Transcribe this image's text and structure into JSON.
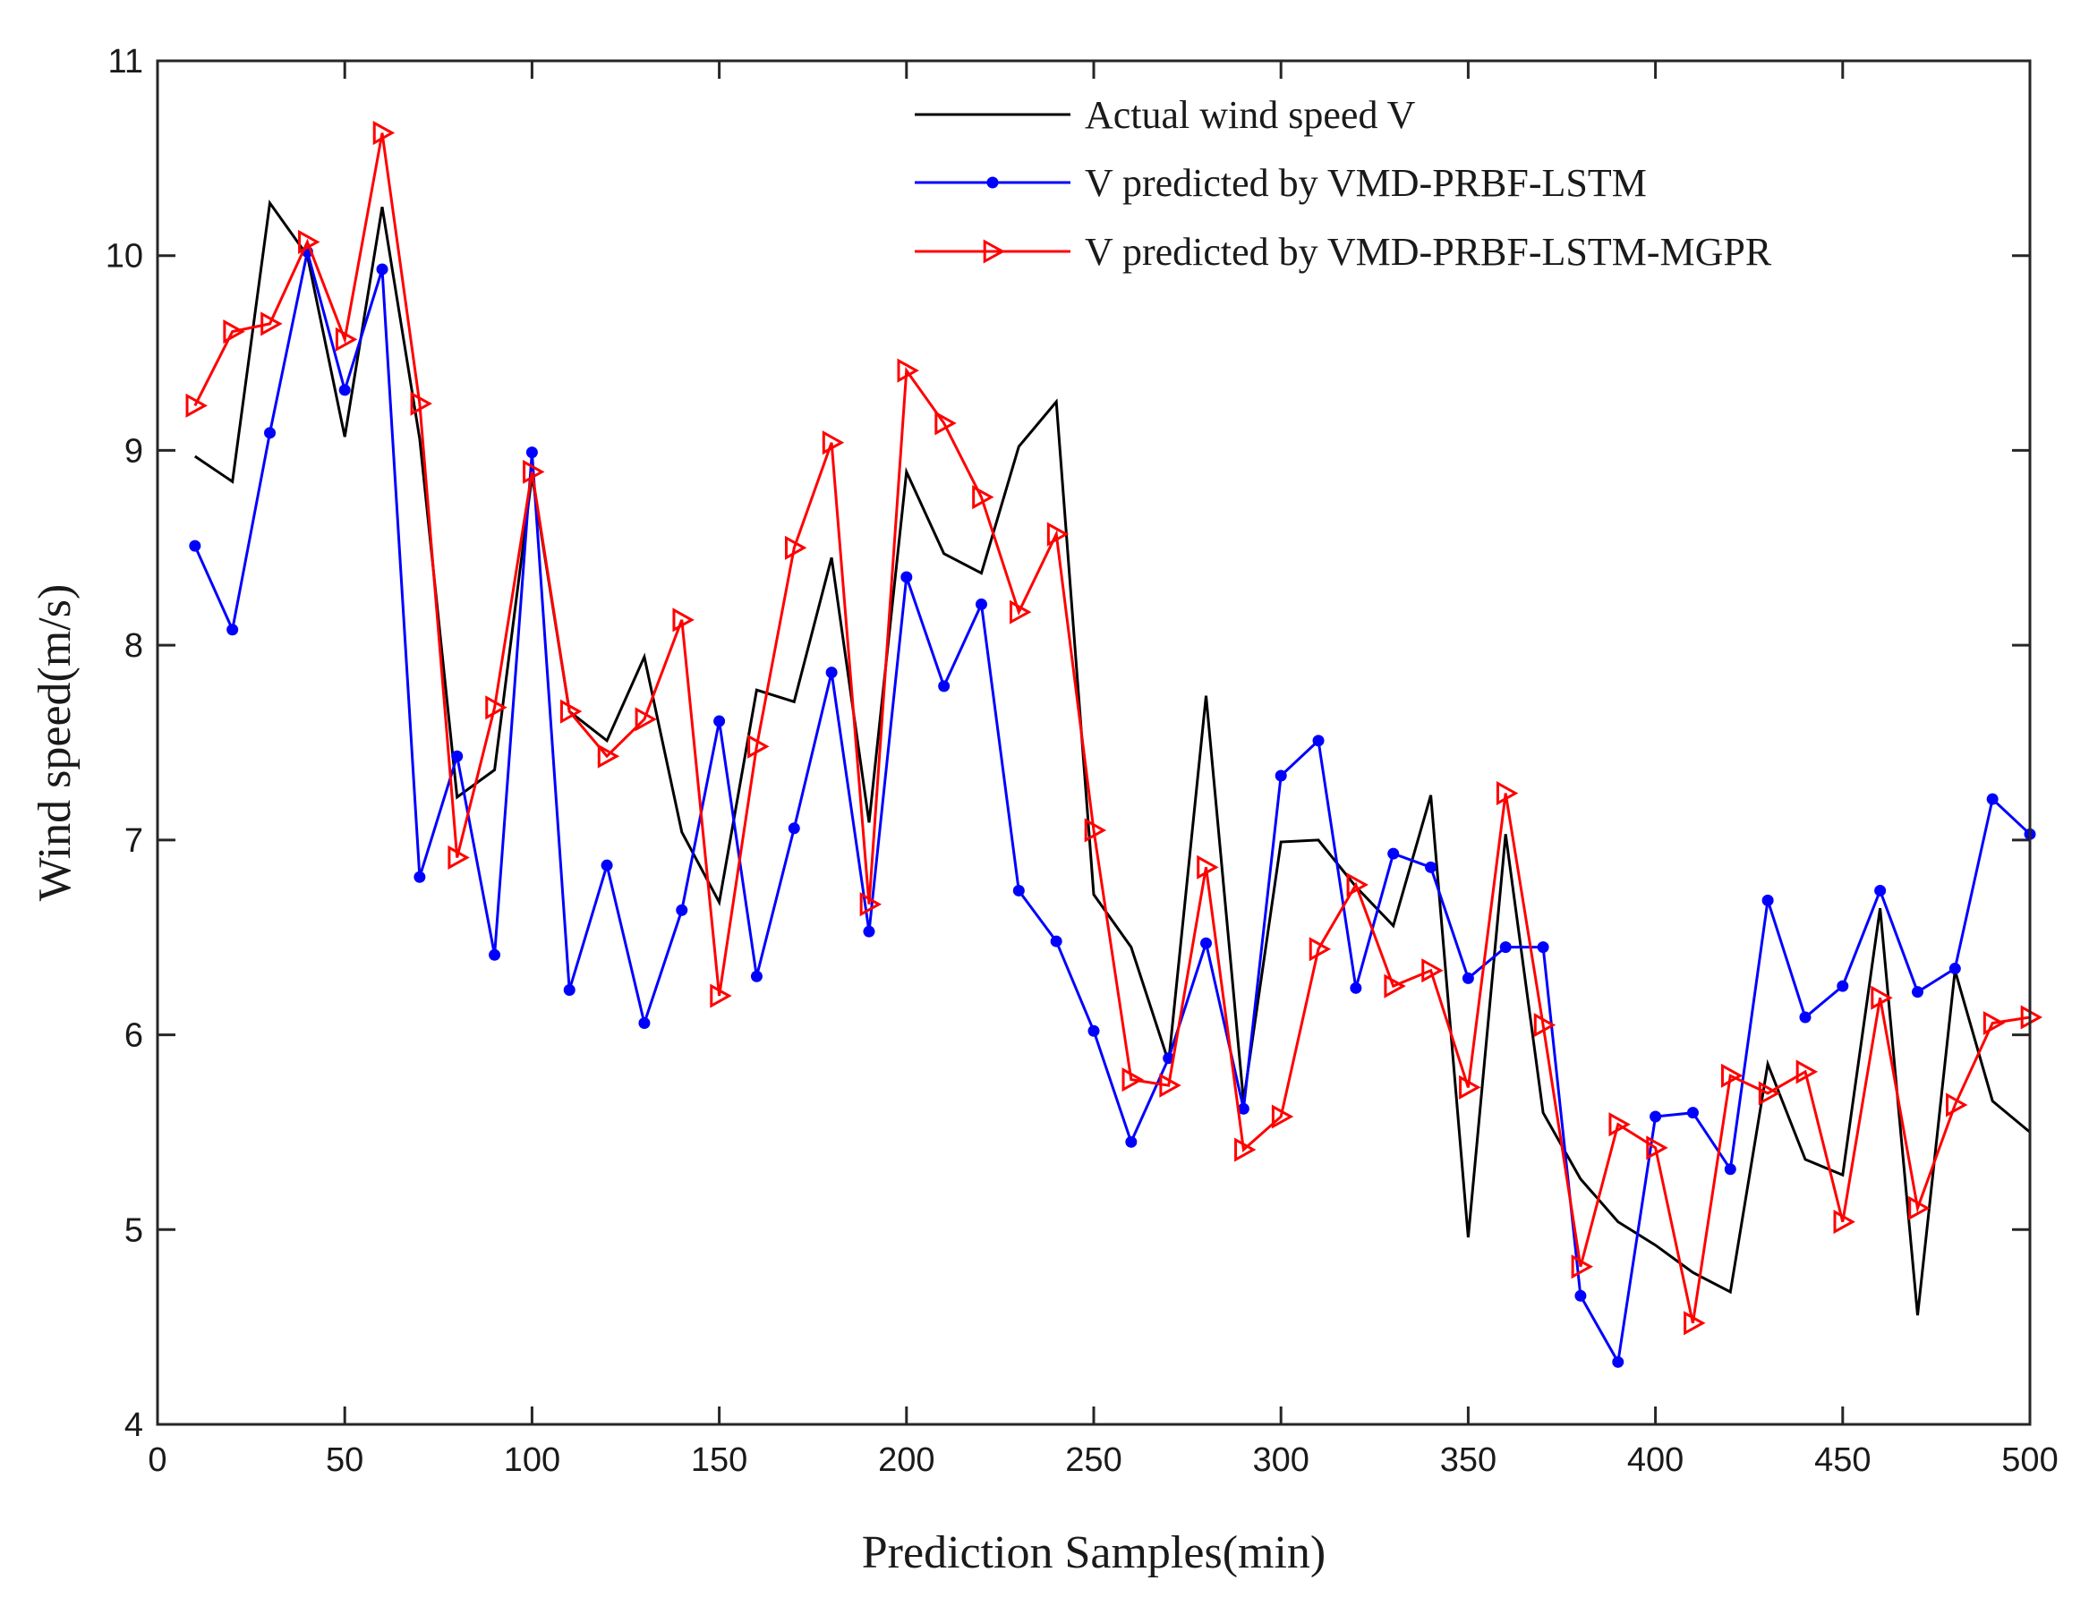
{
  "chart_data": {
    "type": "line",
    "title": "",
    "xlabel": "Prediction Samples(min)",
    "ylabel": "Wind speed(m/s)",
    "xlim": [
      0,
      500
    ],
    "ylim": [
      4,
      11
    ],
    "xticks": [
      0,
      50,
      100,
      150,
      200,
      250,
      300,
      350,
      400,
      450,
      500
    ],
    "yticks": [
      4,
      5,
      6,
      7,
      8,
      9,
      10,
      11
    ],
    "grid": false,
    "legend_position": "top-right",
    "x": [
      10,
      20,
      30,
      40,
      50,
      60,
      70,
      80,
      90,
      100,
      110,
      120,
      130,
      140,
      150,
      160,
      170,
      180,
      190,
      200,
      210,
      220,
      230,
      240,
      250,
      260,
      270,
      280,
      290,
      300,
      310,
      320,
      330,
      340,
      350,
      360,
      370,
      380,
      390,
      400,
      410,
      420,
      430,
      440,
      450,
      460,
      470,
      480,
      490,
      500
    ],
    "series": [
      {
        "name": "Actual wind speed V",
        "color": "#000000",
        "marker": "none",
        "values": [
          8.97,
          8.84,
          10.27,
          10.0,
          9.07,
          10.25,
          9.06,
          7.22,
          7.36,
          8.87,
          7.66,
          7.51,
          7.94,
          7.04,
          6.68,
          7.77,
          7.71,
          8.45,
          7.09,
          8.89,
          8.47,
          8.37,
          9.02,
          9.25,
          6.72,
          6.45,
          5.86,
          7.74,
          5.66,
          6.99,
          7.0,
          6.76,
          6.56,
          7.23,
          4.96,
          7.03,
          5.6,
          5.26,
          5.04,
          4.92,
          4.78,
          4.68,
          5.85,
          5.36,
          5.28,
          6.65,
          4.56,
          6.33,
          5.66,
          5.5
        ]
      },
      {
        "name": "V predicted by VMD-PRBF-LSTM",
        "color": "#0000ff",
        "marker": "dot",
        "values": [
          8.51,
          8.08,
          9.09,
          10.02,
          9.31,
          9.93,
          6.81,
          7.43,
          6.41,
          8.99,
          6.23,
          6.87,
          6.06,
          6.64,
          7.61,
          6.3,
          7.06,
          7.86,
          6.53,
          8.35,
          7.79,
          8.21,
          6.74,
          6.48,
          6.02,
          5.45,
          5.88,
          6.47,
          5.62,
          7.33,
          7.51,
          6.24,
          6.93,
          6.86,
          6.29,
          6.45,
          6.45,
          4.66,
          4.32,
          5.58,
          5.6,
          5.31,
          6.69,
          6.09,
          6.25,
          6.74,
          6.22,
          6.34,
          7.21,
          7.03
        ]
      },
      {
        "name": "V predicted by VMD-PRBF-LSTM-MGPR",
        "color": "#ff0000",
        "marker": "triangle-right",
        "values": [
          9.23,
          9.61,
          9.65,
          10.07,
          9.57,
          10.63,
          9.24,
          6.91,
          7.68,
          8.89,
          7.66,
          7.43,
          7.62,
          8.13,
          6.2,
          7.48,
          8.5,
          9.04,
          6.67,
          9.41,
          9.14,
          8.76,
          8.17,
          8.57,
          7.05,
          5.77,
          5.74,
          6.86,
          5.41,
          5.58,
          6.44,
          6.77,
          6.25,
          6.33,
          5.73,
          7.24,
          6.05,
          4.81,
          5.54,
          5.42,
          4.52,
          5.79,
          5.7,
          5.81,
          5.04,
          6.19,
          5.11,
          5.64,
          6.06,
          6.09
        ]
      }
    ]
  }
}
